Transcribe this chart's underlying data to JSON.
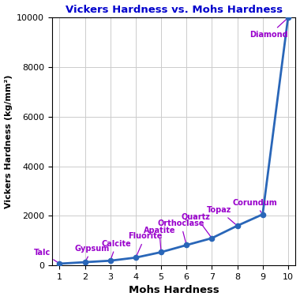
{
  "title": "Vickers Hardness vs. Mohs Hardness",
  "xlabel": "Mohs Hardness",
  "ylabel": "Vickers Hardness (kg/mm²)",
  "mohs": [
    1,
    2,
    3,
    4,
    5,
    6,
    7,
    8,
    9,
    10
  ],
  "vickers": [
    70,
    130,
    190,
    315,
    535,
    820,
    1100,
    1600,
    2060,
    10000
  ],
  "minerals": [
    "Talc",
    "Gypsum",
    "Calcite",
    "Fluorite",
    "Apatite",
    "Orthoclase",
    "Quartz",
    "Topaz",
    "Corundum",
    "Diamond"
  ],
  "line_color": "#2966b8",
  "marker_color": "#2966b8",
  "annotation_color": "#9900cc",
  "title_color": "#0000cc",
  "xlabel_color": "#000000",
  "ylabel_color": "#000000",
  "background_color": "#ffffff",
  "grid_color": "#cccccc",
  "ylim": [
    0,
    10000
  ],
  "xlim": [
    0.7,
    10.3
  ],
  "yticks": [
    0,
    2000,
    4000,
    6000,
    8000,
    10000
  ],
  "xticks": [
    1,
    2,
    3,
    4,
    5,
    6,
    7,
    8,
    9,
    10
  ],
  "annotations": [
    {
      "name": "Talc",
      "xp": 1,
      "yp": 70,
      "xt": 0.65,
      "yt": 530,
      "ha": "right"
    },
    {
      "name": "Gypsum",
      "xp": 2,
      "yp": 130,
      "xt": 1.6,
      "yt": 680,
      "ha": "left"
    },
    {
      "name": "Calcite",
      "xp": 3,
      "yp": 190,
      "xt": 2.65,
      "yt": 880,
      "ha": "left"
    },
    {
      "name": "Fluorite",
      "xp": 4,
      "yp": 315,
      "xt": 3.7,
      "yt": 1180,
      "ha": "left"
    },
    {
      "name": "Apatite",
      "xp": 5,
      "yp": 535,
      "xt": 4.3,
      "yt": 1420,
      "ha": "left"
    },
    {
      "name": "Orthoclase",
      "xp": 6,
      "yp": 820,
      "xt": 4.85,
      "yt": 1700,
      "ha": "left"
    },
    {
      "name": "Quartz",
      "xp": 7,
      "yp": 1100,
      "xt": 5.8,
      "yt": 1970,
      "ha": "left"
    },
    {
      "name": "Topaz",
      "xp": 8,
      "yp": 1600,
      "xt": 6.8,
      "yt": 2230,
      "ha": "left"
    },
    {
      "name": "Corundum",
      "xp": 9,
      "yp": 2060,
      "xt": 7.8,
      "yt": 2530,
      "ha": "left"
    },
    {
      "name": "Diamond",
      "xp": 10,
      "yp": 10000,
      "xt": 8.5,
      "yt": 9300,
      "ha": "left"
    }
  ]
}
